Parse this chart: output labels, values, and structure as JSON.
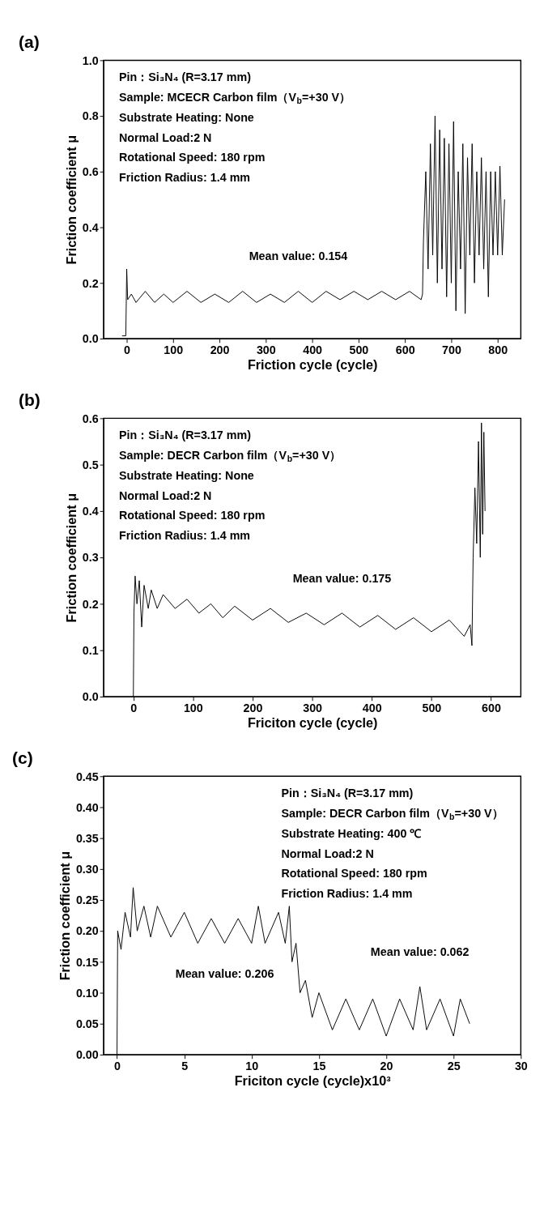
{
  "chart_data": [
    {
      "type": "line",
      "title": "(a)",
      "xlabel": "Friction cycle (cycle)",
      "ylabel": "Friction coefficient μ",
      "xlim": [
        -50,
        850
      ],
      "xticks": [
        0,
        100,
        200,
        300,
        400,
        500,
        600,
        700,
        800
      ],
      "ylim": [
        0,
        1.0
      ],
      "yticks": [
        {
          "value": 0,
          "label": "0.0"
        },
        0.2,
        0.4,
        0.6,
        0.8,
        {
          "value": 1.0,
          "label": "1.0"
        }
      ],
      "series": [
        {
          "color": "#000000",
          "x": [
            -10,
            -2,
            0,
            2,
            10,
            20,
            40,
            60,
            80,
            100,
            130,
            160,
            190,
            220,
            250,
            280,
            310,
            340,
            370,
            400,
            430,
            460,
            490,
            520,
            550,
            580,
            610,
            635,
            638,
            640,
            645,
            650,
            655,
            660,
            665,
            670,
            675,
            680,
            685,
            690,
            695,
            700,
            705,
            710,
            715,
            720,
            725,
            730,
            735,
            740,
            745,
            750,
            755,
            760,
            765,
            770,
            775,
            780,
            785,
            790,
            795,
            800,
            805,
            810,
            815
          ],
          "values": [
            0.01,
            0.01,
            0.25,
            0.14,
            0.16,
            0.13,
            0.17,
            0.13,
            0.16,
            0.13,
            0.17,
            0.13,
            0.16,
            0.13,
            0.17,
            0.13,
            0.16,
            0.13,
            0.17,
            0.13,
            0.17,
            0.14,
            0.17,
            0.14,
            0.17,
            0.14,
            0.17,
            0.14,
            0.16,
            0.35,
            0.6,
            0.25,
            0.7,
            0.3,
            0.8,
            0.2,
            0.75,
            0.25,
            0.72,
            0.15,
            0.7,
            0.2,
            0.78,
            0.1,
            0.6,
            0.25,
            0.7,
            0.09,
            0.65,
            0.3,
            0.7,
            0.2,
            0.6,
            0.3,
            0.65,
            0.25,
            0.6,
            0.15,
            0.6,
            0.3,
            0.6,
            0.3,
            0.62,
            0.3,
            0.5
          ]
        }
      ],
      "annotations": [
        "Pin：Si₃N₄ (R=3.17 mm)",
        "Sample: MCECR Carbon film（V$_{b}$=+30 V）",
        "Substrate Heating: None",
        "Normal Load:2 N",
        "Rotational Speed: 180 rpm",
        "Friction Radius: 1.4 mm",
        {
          "text": "Mean value: 0.154",
          "x": 370,
          "y": 0.17
        }
      ]
    },
    {
      "type": "line",
      "title": "(b)",
      "xlabel": "Friciton cycle  (cycle)",
      "ylabel": "Friction coefficient μ",
      "xlim": [
        -50,
        650
      ],
      "xticks": [
        0,
        100,
        200,
        300,
        400,
        500,
        600
      ],
      "ylim": [
        0,
        0.6
      ],
      "yticks": [
        {
          "value": 0,
          "label": "0.0"
        },
        0.1,
        0.2,
        0.3,
        0.4,
        0.5,
        0.6
      ],
      "series": [
        {
          "color": "#000000",
          "x": [
            0,
            1,
            3,
            6,
            10,
            14,
            18,
            25,
            30,
            40,
            50,
            70,
            90,
            110,
            130,
            150,
            170,
            200,
            230,
            260,
            290,
            320,
            350,
            380,
            410,
            440,
            470,
            500,
            530,
            555,
            565,
            568,
            570,
            573,
            576,
            579,
            582,
            584,
            586,
            588,
            590
          ],
          "values": [
            0,
            0.18,
            0.26,
            0.2,
            0.25,
            0.15,
            0.24,
            0.19,
            0.23,
            0.19,
            0.22,
            0.19,
            0.21,
            0.18,
            0.2,
            0.17,
            0.195,
            0.165,
            0.19,
            0.16,
            0.18,
            0.155,
            0.18,
            0.15,
            0.175,
            0.145,
            0.17,
            0.14,
            0.165,
            0.13,
            0.155,
            0.11,
            0.3,
            0.45,
            0.33,
            0.55,
            0.3,
            0.59,
            0.35,
            0.57,
            0.4
          ]
        }
      ],
      "annotations": [
        "Pin：Si₃N₄ (R=3.17 mm)",
        "Sample: DECR Carbon film（V$_{b}$=+30 V）",
        "Substrate Heating: None",
        "Normal Load:2 N",
        "Rotational Speed: 180 rpm",
        "Friction Radius: 1.4 mm",
        {
          "text": "Mean value: 0.175",
          "x": 350,
          "y": 0.18
        }
      ]
    },
    {
      "type": "line",
      "title": "(c)",
      "xlabel": "Friciton cycle (cycle)x10³",
      "ylabel": "Friction coefficient μ",
      "xlim": [
        -1,
        30
      ],
      "xticks": [
        0,
        5,
        10,
        15,
        20,
        25,
        30
      ],
      "ylim": [
        0,
        0.45
      ],
      "yticks": [
        {
          "value": 0,
          "label": "0.00"
        },
        0.05,
        {
          "value": 0.1,
          "label": "0.10"
        },
        0.15,
        {
          "value": 0.2,
          "label": "0.20"
        },
        0.25,
        {
          "value": 0.3,
          "label": "0.30"
        },
        0.35,
        {
          "value": 0.4,
          "label": "0.40"
        },
        0.45
      ],
      "series": [
        {
          "color": "#000000",
          "x": [
            0,
            0.05,
            0.3,
            0.6,
            1,
            1.2,
            1.5,
            2,
            2.5,
            3,
            4,
            5,
            6,
            7,
            8,
            9,
            10,
            10.5,
            11,
            12,
            12.5,
            12.8,
            13,
            13.3,
            13.6,
            14,
            14.5,
            15,
            16,
            17,
            18,
            19,
            20,
            21,
            22,
            22.5,
            23,
            24,
            25,
            25.5,
            26.2
          ],
          "values": [
            0,
            0.2,
            0.17,
            0.23,
            0.19,
            0.27,
            0.2,
            0.24,
            0.19,
            0.24,
            0.19,
            0.23,
            0.18,
            0.22,
            0.18,
            0.22,
            0.18,
            0.24,
            0.18,
            0.23,
            0.18,
            0.24,
            0.15,
            0.18,
            0.1,
            0.12,
            0.06,
            0.1,
            0.04,
            0.09,
            0.04,
            0.09,
            0.03,
            0.09,
            0.04,
            0.11,
            0.04,
            0.09,
            0.03,
            0.09,
            0.05
          ]
        }
      ],
      "annotations": [
        "Pin：Si₃N₄ (R=3.17 mm)",
        "Sample: DECR Carbon film（V$_{b}$=+30 V）",
        "Substrate Heating: 400 ℃",
        "Normal Load:2 N",
        "Rotational Speed: 180 rpm",
        "Friction Radius: 1.4 mm",
        {
          "text": "Mean value: 0.206",
          "x": 8,
          "y": 0.18
        },
        {
          "text": "Mean value: 0.062",
          "x": 22.5,
          "y": 0.11
        }
      ]
    }
  ]
}
